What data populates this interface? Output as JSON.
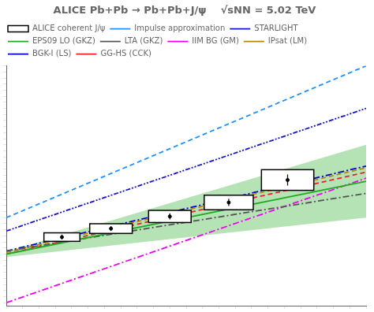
{
  "chart_data": {
    "type": "line",
    "title": "ALICE Pb+Pb → Pb+Pb+J/ψ    √sNN = 5.02 TeV",
    "xlim": [
      0.0,
      1.1
    ],
    "ylim": [
      -0.75,
      3.2
    ],
    "xticks": [
      0.0,
      0.05,
      0.1,
      0.15,
      0.2,
      0.25,
      0.3,
      0.35,
      0.4,
      0.45,
      0.5,
      0.55,
      0.6,
      0.65,
      0.7,
      0.75,
      0.8,
      0.85,
      0.9,
      0.95,
      1.0,
      1.05,
      1.1
    ],
    "yticks": [
      -0.7,
      -0.6,
      -0.5,
      -0.4,
      -0.3,
      -0.2,
      -0.1,
      0,
      0.1,
      0.2,
      0.3,
      0.4,
      0.5,
      0.6,
      0.7,
      0.8,
      0.9,
      1.0,
      1.1,
      1.2,
      1.3,
      1.4,
      1.5,
      1.6,
      1.7,
      1.8,
      1.9,
      2.0,
      2.1,
      2.2,
      2.3,
      2.4,
      2.5,
      2.6,
      2.7,
      2.8,
      2.9,
      3.0,
      3.1,
      3.2
    ],
    "grid": false,
    "legend": "upper left",
    "tick_labels": false,
    "series": [
      {
        "name": "ALICE coherent J/ψ",
        "type": "scatter",
        "marker": "square",
        "color": "#000000",
        "x": [
          0.17,
          0.32,
          0.5,
          0.68,
          0.86
        ],
        "values": [
          0.38,
          0.52,
          0.72,
          0.95,
          1.32
        ],
        "y_err": [
          0.04,
          0.04,
          0.05,
          0.06,
          0.09
        ],
        "x_box_half": [
          0.055,
          0.065,
          0.065,
          0.075,
          0.08
        ],
        "y_box_half": [
          0.07,
          0.08,
          0.1,
          0.12,
          0.17
        ]
      },
      {
        "name": "Impulse approximation",
        "color": "#1e90ff",
        "line_style": "dashed",
        "x": [
          0.0,
          1.1
        ],
        "values": [
          0.7,
          3.2
        ]
      },
      {
        "name": "STARLIGHT",
        "color": "#1414cc",
        "line_style": "dashdotdot",
        "x": [
          0.0,
          1.1
        ],
        "values": [
          0.48,
          2.5
        ]
      },
      {
        "name": "EPS09 LO (GKZ)",
        "color": "#22aa22",
        "line_style": "solid",
        "x": [
          0.0,
          1.1
        ],
        "values": [
          0.1,
          1.3
        ],
        "lower": [
          0.05,
          0.7
        ],
        "upper": [
          0.14,
          1.9
        ]
      },
      {
        "name": "LTA (GKZ)",
        "color": "#555555",
        "line_style": "dashdot",
        "x": [
          0.0,
          1.1
        ],
        "values": [
          0.15,
          1.1
        ]
      },
      {
        "name": "IIM BG (GM)",
        "color": "#ee00ee",
        "line_style": "dashdot",
        "x": [
          0.0,
          1.1
        ],
        "values": [
          -0.7,
          1.35
        ]
      },
      {
        "name": "IPsat (LM)",
        "color": "#b8860b",
        "line_style": "dashed",
        "x": [
          0.0,
          1.1
        ],
        "values": [
          0.13,
          1.52
        ]
      },
      {
        "name": "BGK-I (LS)",
        "color": "#0000cc",
        "line_style": "dashdot",
        "x": [
          0.0,
          1.1
        ],
        "values": [
          0.15,
          1.55
        ]
      },
      {
        "name": "GG-HS (CCK)",
        "color": "#ee2222",
        "line_style": "dashed",
        "x": [
          0.0,
          1.1
        ],
        "values": [
          0.1,
          1.45
        ]
      }
    ]
  }
}
